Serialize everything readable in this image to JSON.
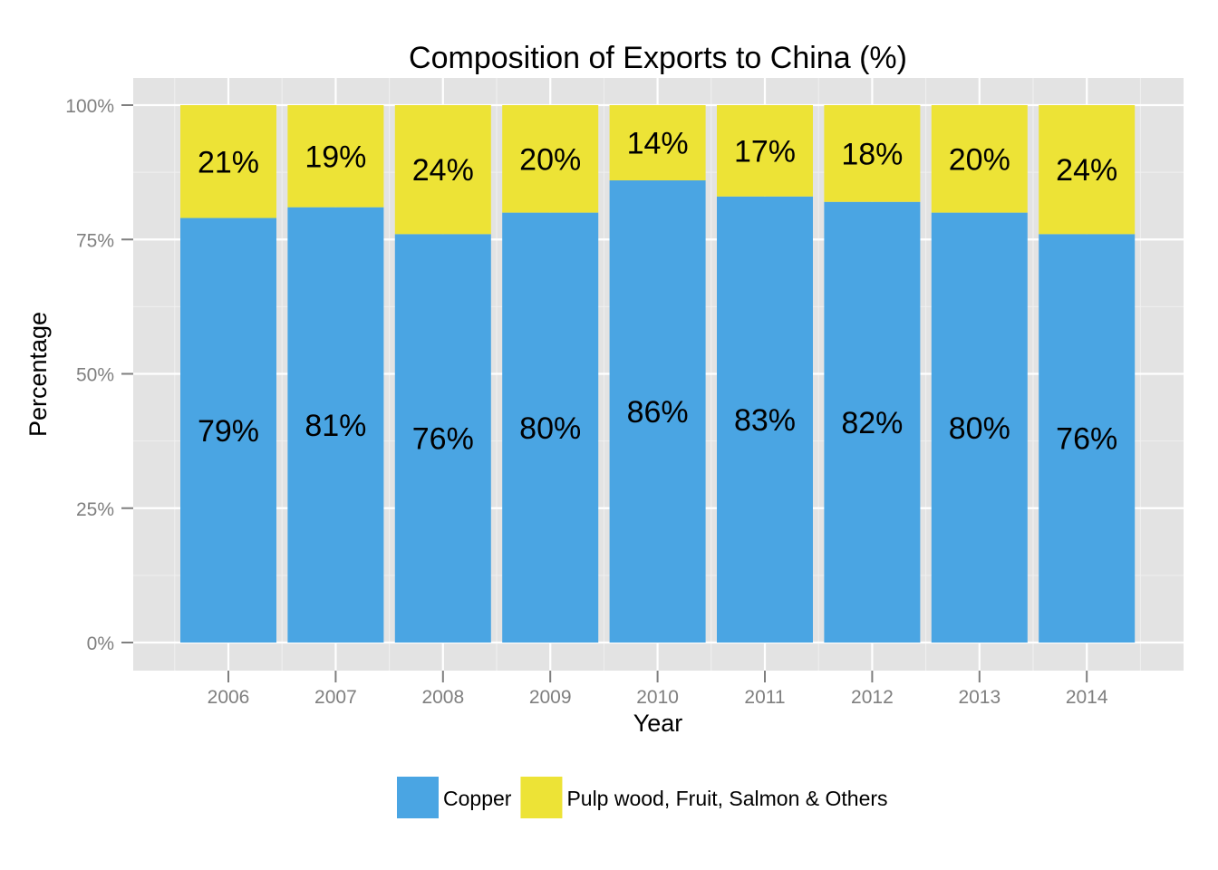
{
  "chart_data": {
    "type": "bar",
    "stacked": true,
    "title": "Composition of Exports to China (%)",
    "xlabel": "Year",
    "ylabel": "Percentage",
    "ylim": [
      0,
      100
    ],
    "y_ticks": [
      {
        "value": 0,
        "label": "0%"
      },
      {
        "value": 25,
        "label": "25%"
      },
      {
        "value": 50,
        "label": "50%"
      },
      {
        "value": 75,
        "label": "75%"
      },
      {
        "value": 100,
        "label": "100%"
      }
    ],
    "categories": [
      "2006",
      "2007",
      "2008",
      "2009",
      "2010",
      "2011",
      "2012",
      "2013",
      "2014"
    ],
    "series": [
      {
        "name": "Copper",
        "color": "#4aa5e3",
        "values": [
          79,
          81,
          76,
          80,
          86,
          83,
          82,
          80,
          76
        ],
        "labels": [
          "79%",
          "81%",
          "76%",
          "80%",
          "86%",
          "83%",
          "82%",
          "80%",
          "76%"
        ]
      },
      {
        "name": "Pulp wood, Fruit, Salmon & Others",
        "color": "#ede336",
        "values": [
          21,
          19,
          24,
          20,
          14,
          17,
          18,
          20,
          24
        ],
        "labels": [
          "21%",
          "19%",
          "24%",
          "20%",
          "14%",
          "17%",
          "18%",
          "20%",
          "24%"
        ]
      }
    ],
    "grid": true,
    "panel_background": "#e3e3e3",
    "legend_position": "bottom"
  }
}
